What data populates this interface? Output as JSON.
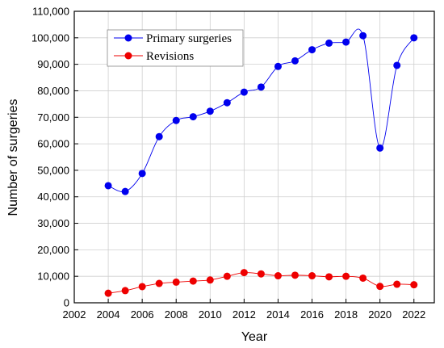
{
  "chart_data": {
    "type": "line",
    "x": [
      2004,
      2005,
      2006,
      2007,
      2008,
      2009,
      2010,
      2011,
      2012,
      2013,
      2014,
      2015,
      2016,
      2017,
      2018,
      2019,
      2020,
      2021,
      2022
    ],
    "series": [
      {
        "name": "Primary surgeries",
        "color": "#0000ee",
        "values": [
          44200,
          42000,
          48800,
          62700,
          68800,
          70200,
          72300,
          75500,
          79500,
          81400,
          89200,
          91300,
          95500,
          98000,
          98400,
          100800,
          58400,
          89600,
          100000
        ]
      },
      {
        "name": "Revisions",
        "color": "#ee0000",
        "values": [
          3600,
          4600,
          6100,
          7300,
          7800,
          8200,
          8600,
          10000,
          11400,
          10900,
          10200,
          10400,
          10200,
          9800,
          10000,
          9300,
          6200,
          7000,
          6800
        ]
      }
    ],
    "xlabel": "Year",
    "ylabel": "Number of surgeries",
    "xlim": [
      2002,
      2023.2
    ],
    "ylim": [
      0,
      110000
    ],
    "xticks": [
      2002,
      2004,
      2006,
      2008,
      2010,
      2012,
      2014,
      2016,
      2018,
      2020,
      2022
    ],
    "yticks": [
      0,
      10000,
      20000,
      30000,
      40000,
      50000,
      60000,
      70000,
      80000,
      90000,
      100000,
      110000
    ],
    "xtick_labels": [
      "2002",
      "2004",
      "2006",
      "2008",
      "2010",
      "2012",
      "2014",
      "2016",
      "2018",
      "2020",
      "2022"
    ],
    "ytick_labels": [
      "0",
      "10,000",
      "20,000",
      "30,000",
      "40,000",
      "50,000",
      "60,000",
      "70,000",
      "80,000",
      "90,000",
      "100,000",
      "110,000"
    ],
    "grid": true,
    "legend_position": "top-left"
  }
}
